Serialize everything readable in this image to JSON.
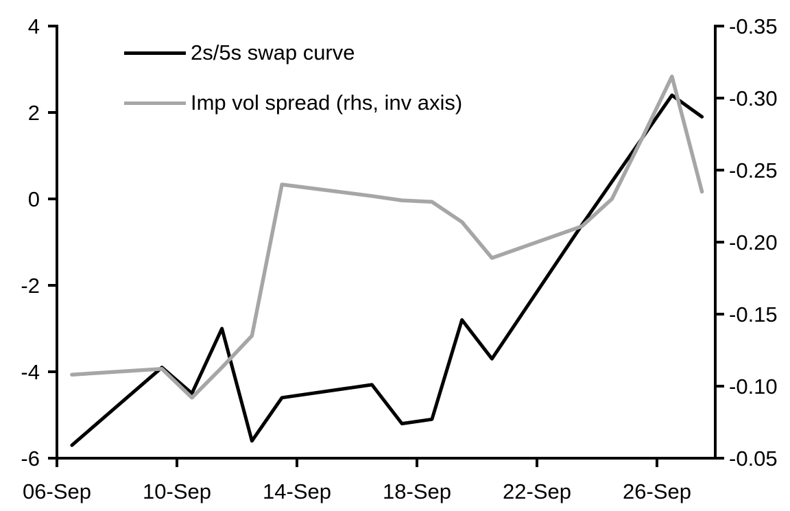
{
  "chart_data": {
    "type": "line",
    "title": "",
    "grid": false,
    "background_color": "#ffffff",
    "axis_color": "#000000",
    "legend_position": "top-left-inside",
    "x_axis": {
      "tick_labels": [
        "06-Sep",
        "10-Sep",
        "14-Sep",
        "18-Sep",
        "22-Sep",
        "26-Sep"
      ]
    },
    "left_axis": {
      "tick_labels": [
        "4",
        "2",
        "0",
        "-2",
        "-4",
        "-6"
      ],
      "max": 4,
      "min": -6
    },
    "right_axis": {
      "tick_labels": [
        "-0.35",
        "-0.30",
        "-0.25",
        "-0.20",
        "-0.15",
        "-0.10",
        "-0.05"
      ],
      "top_value": -0.35,
      "bottom_value": -0.05,
      "inverted": true
    },
    "series": [
      {
        "name": "2s/5s swap curve",
        "axis": "left",
        "color": "#000000",
        "dates": [
          "06-Sep",
          "09-Sep",
          "10-Sep",
          "11-Sep",
          "12-Sep",
          "13-Sep",
          "16-Sep",
          "17-Sep",
          "18-Sep",
          "19-Sep",
          "20-Sep",
          "23-Sep",
          "24-Sep",
          "25-Sep",
          "26-Sep",
          "27-Sep"
        ],
        "values": [
          -5.7,
          -3.9,
          -4.5,
          -3.0,
          -5.6,
          -4.6,
          -4.3,
          -5.2,
          -5.1,
          -2.8,
          -3.7,
          -0.6,
          0.4,
          1.4,
          2.4,
          1.9
        ]
      },
      {
        "name": "Imp vol spread (rhs, inv axis)",
        "axis": "right",
        "color": "#a6a6a6",
        "dates": [
          "06-Sep",
          "09-Sep",
          "10-Sep",
          "11-Sep",
          "12-Sep",
          "13-Sep",
          "16-Sep",
          "17-Sep",
          "18-Sep",
          "19-Sep",
          "20-Sep",
          "23-Sep",
          "24-Sep",
          "25-Sep",
          "26-Sep",
          "27-Sep"
        ],
        "values": [
          -0.108,
          -0.112,
          -0.092,
          -0.113,
          -0.135,
          -0.24,
          -0.232,
          -0.229,
          -0.228,
          -0.214,
          -0.189,
          -0.211,
          -0.23,
          -0.272,
          -0.315,
          -0.235
        ]
      }
    ]
  }
}
